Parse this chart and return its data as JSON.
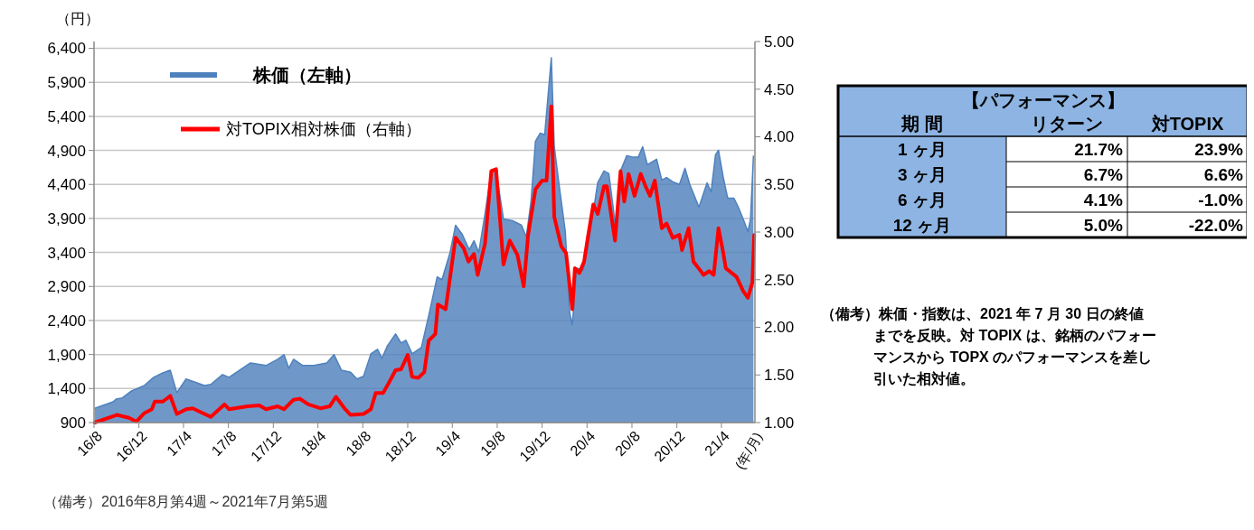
{
  "chart_data": [
    {
      "type": "area",
      "ylabel": "（円）",
      "xlabel": "(年/月)",
      "legend": "top left",
      "grid": "y",
      "xlim": [
        "2016-08-01",
        "2021-07-01"
      ],
      "xticks": [
        {
          "value": "2016-08",
          "label": "16/8"
        },
        {
          "value": "2016-12",
          "label": "16/12"
        },
        {
          "value": "2017-04",
          "label": "17/4"
        },
        {
          "value": "2017-08",
          "label": "17/8"
        },
        {
          "value": "2017-12",
          "label": "17/12"
        },
        {
          "value": "2018-04",
          "label": "18/4"
        },
        {
          "value": "2018-08",
          "label": "18/8"
        },
        {
          "value": "2018-12",
          "label": "18/12"
        },
        {
          "value": "2019-04",
          "label": "19/4"
        },
        {
          "value": "2019-08",
          "label": "19/8"
        },
        {
          "value": "2019-12",
          "label": "19/12"
        },
        {
          "value": "2020-04",
          "label": "20/4"
        },
        {
          "value": "2020-08",
          "label": "20/8"
        },
        {
          "value": "2020-12",
          "label": "20/12"
        },
        {
          "value": "2021-04",
          "label": "21/4"
        }
      ],
      "ylim": [
        900,
        6500
      ],
      "yticks": [
        900,
        {
          "value": 1400,
          "label": "1,400"
        },
        {
          "value": 1900,
          "label": "1,900"
        },
        {
          "value": 2400,
          "label": "2,400"
        },
        {
          "value": 2900,
          "label": "2,900"
        },
        {
          "value": 3400,
          "label": "3,400"
        },
        {
          "value": 3900,
          "label": "3,900"
        },
        {
          "value": 4400,
          "label": "4,400"
        },
        {
          "value": 4900,
          "label": "4,900"
        },
        {
          "value": 5400,
          "label": "5,400"
        },
        {
          "value": 5900,
          "label": "5,900"
        },
        {
          "value": 6400,
          "label": "6,400"
        }
      ],
      "y2lim": [
        1,
        5
      ],
      "y2ticks": [
        {
          "value": 1,
          "label": "1.00"
        },
        {
          "value": 1.5,
          "label": "1.50"
        },
        {
          "value": 2,
          "label": "2.00"
        },
        {
          "value": 2.5,
          "label": "2.50"
        },
        {
          "value": 3,
          "label": "3.00"
        },
        {
          "value": 3.5,
          "label": "3.50"
        },
        {
          "value": 4,
          "label": "4.00"
        },
        {
          "value": 4.5,
          "label": "4.50"
        },
        {
          "value": 5,
          "label": "5.00"
        }
      ],
      "annotations": [
        "（備考）2016年8月第4週～2021年7月第5週"
      ],
      "series": [
        {
          "name": "株価（左軸）",
          "type": "area",
          "color": "#4f81bd",
          "x": [
            "2016-08-03",
            "2016-09-22",
            "2016-09-30",
            "2016-10-17",
            "2016-11-11",
            "2016-12-16",
            "2017-01-10",
            "2017-02-04",
            "2017-02-24",
            "2017-03-14",
            "2017-04-08",
            "2017-05-28",
            "2017-06-14",
            "2017-07-16",
            "2017-08-03",
            "2017-09-30",
            "2017-11-11",
            "2017-12-13",
            "2017-12-30",
            "2018-01-12",
            "2018-01-25",
            "2018-02-18",
            "2018-03-21",
            "2018-04-25",
            "2018-05-15",
            "2018-06-04",
            "2018-06-29",
            "2018-07-16",
            "2018-08-03",
            "2018-08-23",
            "2018-09-10",
            "2018-09-22",
            "2018-10-07",
            "2018-10-29",
            "2018-11-13",
            "2018-11-26",
            "2018-12-13",
            "2019-01-07",
            "2019-01-27",
            "2019-02-19",
            "2019-03-04",
            "2019-03-26",
            "2019-04-10",
            "2019-04-28",
            "2019-05-17",
            "2019-05-30",
            "2019-06-12",
            "2019-06-29",
            "2019-07-16",
            "2019-07-29",
            "2019-08-18",
            "2019-09-12",
            "2019-10-06",
            "2019-10-19",
            "2019-11-01",
            "2019-11-13",
            "2019-11-26",
            "2019-12-08",
            "2019-12-26",
            "2020-01-03",
            "2020-01-15",
            "2020-02-02",
            "2020-02-14",
            "2020-02-21",
            "2020-03-04",
            "2020-03-21",
            "2020-04-05",
            "2020-04-30",
            "2020-05-17",
            "2020-05-30",
            "2020-06-11",
            "2020-06-19",
            "2020-07-01",
            "2020-07-18",
            "2020-08-05",
            "2020-08-18",
            "2020-08-30",
            "2020-09-12",
            "2020-10-07",
            "2020-10-21",
            "2020-11-03",
            "2020-11-20",
            "2020-12-08",
            "2020-12-23",
            "2021-01-05",
            "2021-01-30",
            "2021-02-21",
            "2021-03-04",
            "2021-03-16",
            "2021-03-24",
            "2021-04-06",
            "2021-04-18",
            "2021-05-05",
            "2021-05-17",
            "2021-05-30",
            "2021-06-12",
            "2021-06-19",
            "2021-06-27"
          ],
          "values": [
            1110,
            1206,
            1246,
            1262,
            1365,
            1445,
            1565,
            1630,
            1670,
            1340,
            1540,
            1445,
            1460,
            1605,
            1565,
            1777,
            1738,
            1830,
            1897,
            1698,
            1830,
            1740,
            1740,
            1777,
            1897,
            1670,
            1640,
            1540,
            1580,
            1910,
            1977,
            1844,
            2030,
            2203,
            2070,
            2110,
            1910,
            2004,
            2470,
            3041,
            3000,
            3400,
            3800,
            3666,
            3440,
            3573,
            3400,
            3972,
            4597,
            4597,
            3892,
            3866,
            3800,
            3626,
            4158,
            5036,
            5155,
            5130,
            6260,
            4955,
            4437,
            3706,
            2510,
            2336,
            3174,
            3134,
            3533,
            4424,
            4597,
            4560,
            4065,
            3666,
            4597,
            4823,
            4800,
            4800,
            4955,
            4690,
            4770,
            4464,
            4500,
            4437,
            4400,
            4637,
            4400,
            4065,
            4424,
            4291,
            4836,
            4903,
            4504,
            4198,
            4198,
            4065,
            3892,
            3706,
            3892,
            4823
          ]
        },
        {
          "name": "対TOPIX相対株価（右軸）",
          "type": "line",
          "axis": "y2",
          "color": "#ff0000",
          "x": [
            "2016-08-03",
            "2016-10-02",
            "2016-11-04",
            "2016-11-24",
            "2016-12-16",
            "2017-01-05",
            "2017-01-13",
            "2017-02-04",
            "2017-02-24",
            "2017-03-14",
            "2017-04-08",
            "2017-04-26",
            "2017-05-28",
            "2017-06-14",
            "2017-07-21",
            "2017-08-03",
            "2017-09-22",
            "2017-10-24",
            "2017-11-11",
            "2017-12-13",
            "2017-12-30",
            "2018-01-25",
            "2018-02-11",
            "2018-03-06",
            "2018-04-08",
            "2018-05-03",
            "2018-05-20",
            "2018-06-14",
            "2018-06-29",
            "2018-08-03",
            "2018-08-23",
            "2018-09-05",
            "2018-09-25",
            "2018-10-07",
            "2018-10-29",
            "2018-11-13",
            "2018-12-01",
            "2018-12-13",
            "2018-12-30",
            "2019-01-15",
            "2019-01-27",
            "2019-02-14",
            "2019-02-21",
            "2019-03-14",
            "2019-04-10",
            "2019-05-02",
            "2019-05-15",
            "2019-05-30",
            "2019-06-09",
            "2019-06-29",
            "2019-07-16",
            "2019-07-29",
            "2019-08-18",
            "2019-09-04",
            "2019-09-25",
            "2019-10-12",
            "2019-10-24",
            "2019-11-13",
            "2019-12-01",
            "2019-12-13",
            "2019-12-26",
            "2020-01-03",
            "2020-01-22",
            "2020-02-04",
            "2020-02-21",
            "2020-02-28",
            "2020-03-11",
            "2020-03-24",
            "2020-04-03",
            "2020-04-18",
            "2020-04-30",
            "2020-05-17",
            "2020-05-25",
            "2020-06-16",
            "2020-07-01",
            "2020-07-11",
            "2020-07-23",
            "2020-08-08",
            "2020-08-25",
            "2020-09-07",
            "2020-09-19",
            "2020-10-02",
            "2020-10-21",
            "2020-11-03",
            "2020-11-20",
            "2020-12-08",
            "2020-12-15",
            "2021-01-02",
            "2021-01-15",
            "2021-02-04",
            "2021-02-11",
            "2021-02-27",
            "2021-03-11",
            "2021-03-24",
            "2021-04-06",
            "2021-04-13",
            "2021-05-12",
            "2021-05-30",
            "2021-06-12",
            "2021-06-24",
            "2021-06-29"
          ],
          "values": [
            1.0,
            1.08,
            1.05,
            1.01,
            1.1,
            1.14,
            1.22,
            1.22,
            1.28,
            1.09,
            1.14,
            1.15,
            1.09,
            1.06,
            1.19,
            1.14,
            1.17,
            1.18,
            1.14,
            1.17,
            1.14,
            1.24,
            1.25,
            1.19,
            1.15,
            1.17,
            1.27,
            1.14,
            1.08,
            1.09,
            1.14,
            1.31,
            1.31,
            1.39,
            1.55,
            1.56,
            1.71,
            1.48,
            1.47,
            1.53,
            1.86,
            1.93,
            2.24,
            2.19,
            2.94,
            2.83,
            2.69,
            2.77,
            2.55,
            2.88,
            3.64,
            3.66,
            2.66,
            2.91,
            2.76,
            2.43,
            2.97,
            3.45,
            3.54,
            3.54,
            4.32,
            3.16,
            2.85,
            2.78,
            2.19,
            2.62,
            2.57,
            2.69,
            2.94,
            3.29,
            3.19,
            3.48,
            3.48,
            2.91,
            3.64,
            3.32,
            3.61,
            3.38,
            3.61,
            3.48,
            3.38,
            3.54,
            3.04,
            3.09,
            2.94,
            2.97,
            2.81,
            3.04,
            2.69,
            2.59,
            2.55,
            2.59,
            2.55,
            3.04,
            2.78,
            2.62,
            2.53,
            2.38,
            2.31,
            2.47,
            2.97
          ]
        }
      ]
    },
    {
      "type": "other",
      "title": "【パフォーマンス】",
      "ylabel": "期 間",
      "categories": [
        "リターン",
        "対TOPIX"
      ],
      "y_categories": [
        "1 ヶ月",
        "3 ヶ月",
        "6 ヶ月",
        "12 ヶ月"
      ],
      "cell_labels": [
        [
          "21.7%",
          "23.9%"
        ],
        [
          "6.7%",
          "6.6%"
        ],
        [
          "4.1%",
          "-1.0%"
        ],
        [
          "5.0%",
          "-22.0%"
        ]
      ],
      "annotations": [
        "（備考）株価・指数は、2021 年 7 月 30 日の終値までを反映。対 TOPIX は、銘柄のパフォーマンスから TOPX のパフォーマンスを差し引いた相対値。"
      ]
    }
  ]
}
